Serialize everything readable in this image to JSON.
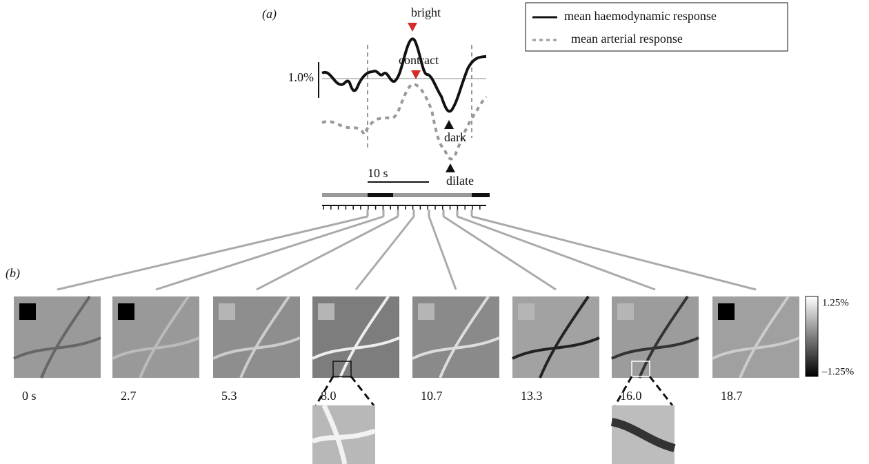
{
  "panel_a": {
    "label": "(a)",
    "annotations": {
      "bright": "bright",
      "contract": "contract",
      "dark": "dark",
      "dilate": "dilate"
    },
    "scale_y": "1.0%",
    "scale_x": "10 s",
    "legend": [
      "mean haemodynamic response",
      "mean arterial response"
    ]
  },
  "panel_b": {
    "label": "(b)",
    "frames": [
      "0 s",
      "2.7",
      "5.3",
      "8.0",
      "10.7",
      "13.3",
      "16.0",
      "18.7"
    ],
    "colorbar": {
      "max": "1.25%",
      "min": "–1.25%"
    }
  }
}
